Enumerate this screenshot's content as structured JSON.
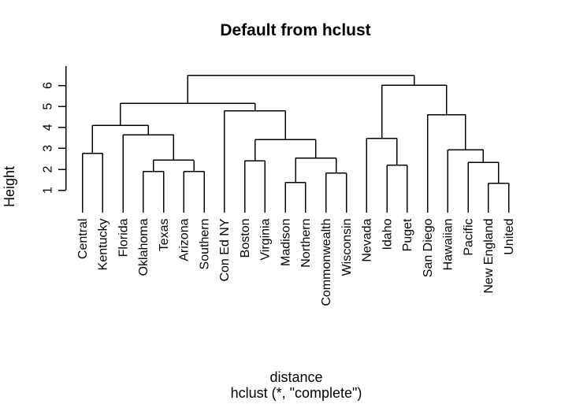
{
  "chart_data": {
    "type": "dendrogram",
    "title": "Default from hclust",
    "ylabel": "Height",
    "xlabel": "distance",
    "sub": "hclust (*, \"complete\")",
    "y_ticks": [
      1,
      2,
      3,
      4,
      5,
      6
    ],
    "ylim": [
      1,
      6.5
    ],
    "legend": "none",
    "grid": "off",
    "colors": {
      "foreground": "#000000",
      "background": "#ffffff"
    },
    "leaf_order": [
      "Central",
      "Kentucky",
      "Florida",
      "Oklahoma",
      "Texas",
      "Arizona",
      "Southern",
      "Con Ed NY",
      "Boston",
      "Virginia",
      "Madison",
      "Northern",
      "Commonwealth",
      "Wisconsin",
      "Nevada",
      "Idaho",
      "Puget",
      "San Diego",
      "Hawaiian",
      "Pacific",
      "New England",
      "United"
    ],
    "tree": {
      "h": 6.48,
      "c": [
        {
          "h": 5.15,
          "c": [
            {
              "h": 4.1,
              "c": [
                {
                  "h": 2.76,
                  "c": [
                    "Central",
                    "Kentucky"
                  ]
                },
                {
                  "h": 3.65,
                  "c": [
                    "Florida",
                    {
                      "h": 2.44,
                      "c": [
                        {
                          "h": 1.9,
                          "c": [
                            "Oklahoma",
                            "Texas"
                          ]
                        },
                        {
                          "h": 1.9,
                          "c": [
                            "Arizona",
                            "Southern"
                          ]
                        }
                      ]
                    }
                  ]
                }
              ]
            },
            {
              "h": 4.79,
              "c": [
                "Con Ed NY",
                {
                  "h": 3.41,
                  "c": [
                    {
                      "h": 2.41,
                      "c": [
                        "Boston",
                        "Virginia"
                      ]
                    },
                    {
                      "h": 2.54,
                      "c": [
                        {
                          "h": 1.38,
                          "c": [
                            "Madison",
                            "Northern"
                          ]
                        },
                        {
                          "h": 1.82,
                          "c": [
                            "Commonwealth",
                            "Wisconsin"
                          ]
                        }
                      ]
                    }
                  ]
                }
              ]
            }
          ]
        },
        {
          "h": 6.01,
          "c": [
            {
              "h": 3.48,
              "c": [
                "Nevada",
                {
                  "h": 2.19,
                  "c": [
                    "Idaho",
                    "Puget"
                  ]
                }
              ]
            },
            {
              "h": 4.61,
              "c": [
                "San Diego",
                {
                  "h": 2.94,
                  "c": [
                    "Hawaiian",
                    {
                      "h": 2.34,
                      "c": [
                        "Pacific",
                        {
                          "h": 1.34,
                          "c": [
                            "New England",
                            "United"
                          ]
                        }
                      ]
                    }
                  ]
                }
              ]
            }
          ]
        }
      ]
    }
  }
}
